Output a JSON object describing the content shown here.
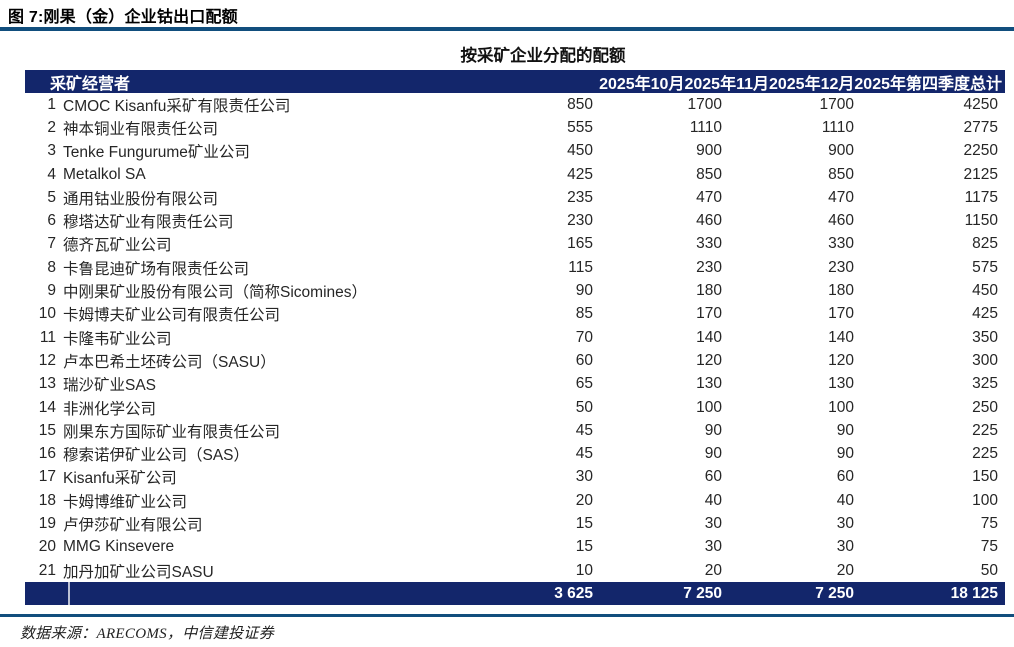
{
  "figure": {
    "title": "图 7:刚果（金）企业钴出口配额",
    "source_note": "数据来源：ARECOMS，中信建投证券"
  },
  "table": {
    "subtitle": "按采矿企业分配的配额",
    "columns": [
      "采矿经营者",
      "2025年10月",
      "2025年11月",
      "2025年12月",
      "2025年第四季度总计"
    ],
    "rows": [
      {
        "no": 1,
        "name": "CMOC Kisanfu采矿有限责任公司",
        "values": [
          850,
          1700,
          1700,
          4250
        ]
      },
      {
        "no": 2,
        "name": "神本铜业有限责任公司",
        "values": [
          555,
          1110,
          1110,
          2775
        ]
      },
      {
        "no": 3,
        "name": "Tenke Fungurume矿业公司",
        "values": [
          450,
          900,
          900,
          2250
        ]
      },
      {
        "no": 4,
        "name": "Metalkol SA",
        "values": [
          425,
          850,
          850,
          2125
        ]
      },
      {
        "no": 5,
        "name": "通用钴业股份有限公司",
        "values": [
          235,
          470,
          470,
          1175
        ]
      },
      {
        "no": 6,
        "name": "穆塔达矿业有限责任公司",
        "values": [
          230,
          460,
          460,
          1150
        ]
      },
      {
        "no": 7,
        "name": "德齐瓦矿业公司",
        "values": [
          165,
          330,
          330,
          825
        ]
      },
      {
        "no": 8,
        "name": "卡鲁昆迪矿场有限责任公司",
        "values": [
          115,
          230,
          230,
          575
        ]
      },
      {
        "no": 9,
        "name": "中刚果矿业股份有限公司（简称Sicomines）",
        "values": [
          90,
          180,
          180,
          450
        ]
      },
      {
        "no": 10,
        "name": "卡姆博夫矿业公司有限责任公司",
        "values": [
          85,
          170,
          170,
          425
        ]
      },
      {
        "no": 11,
        "name": "卡隆韦矿业公司",
        "values": [
          70,
          140,
          140,
          350
        ]
      },
      {
        "no": 12,
        "name": "卢本巴希土坯砖公司（SASU）",
        "values": [
          60,
          120,
          120,
          300
        ]
      },
      {
        "no": 13,
        "name": "瑞沙矿业SAS",
        "values": [
          65,
          130,
          130,
          325
        ]
      },
      {
        "no": 14,
        "name": "非洲化学公司",
        "values": [
          50,
          100,
          100,
          250
        ]
      },
      {
        "no": 15,
        "name": "刚果东方国际矿业有限责任公司",
        "values": [
          45,
          90,
          90,
          225
        ]
      },
      {
        "no": 16,
        "name": "穆索诺伊矿业公司（SAS）",
        "values": [
          45,
          90,
          90,
          225
        ]
      },
      {
        "no": 17,
        "name": "Kisanfu采矿公司",
        "values": [
          30,
          60,
          60,
          150
        ]
      },
      {
        "no": 18,
        "name": "卡姆博维矿业公司",
        "values": [
          20,
          40,
          40,
          100
        ]
      },
      {
        "no": 19,
        "name": "卢伊莎矿业有限公司",
        "values": [
          15,
          30,
          30,
          75
        ]
      },
      {
        "no": 20,
        "name": "MMG Kinsevere",
        "values": [
          15,
          30,
          30,
          75
        ]
      },
      {
        "no": 21,
        "name": "加丹加矿业公司SASU",
        "values": [
          10,
          20,
          20,
          50
        ]
      }
    ],
    "total": {
      "values": [
        "3 625",
        "7 250",
        "7 250",
        "18 125"
      ]
    }
  },
  "colors": {
    "navy": "#13266b",
    "rule": "#114e7d"
  }
}
